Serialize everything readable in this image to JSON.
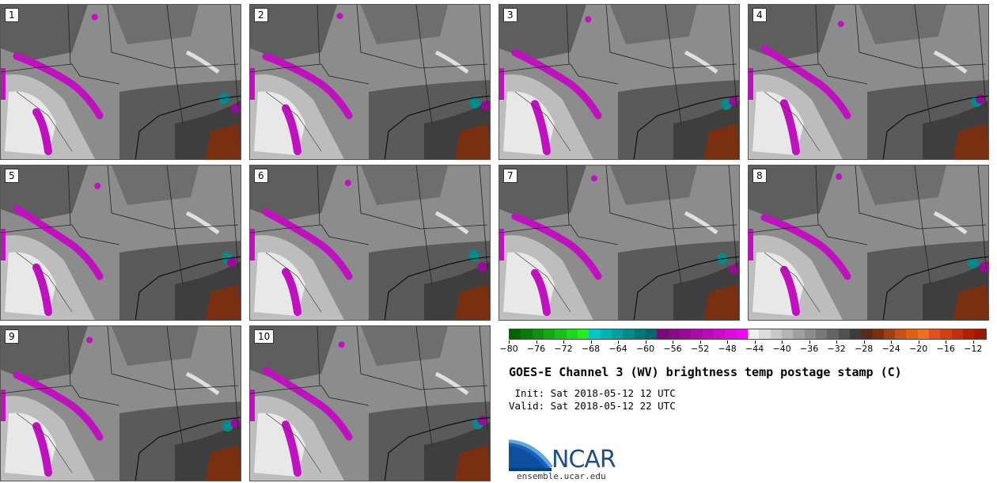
{
  "panels": [
    {
      "label": "1"
    },
    {
      "label": "2"
    },
    {
      "label": "3"
    },
    {
      "label": "4"
    },
    {
      "label": "5"
    },
    {
      "label": "6"
    },
    {
      "label": "7"
    },
    {
      "label": "8"
    },
    {
      "label": "9"
    },
    {
      "label": "10"
    }
  ],
  "colorbar": {
    "min": -80,
    "max": -10,
    "step": 2,
    "tick_values": [
      -80,
      -76,
      -72,
      -68,
      -64,
      -60,
      -56,
      -52,
      -48,
      -44,
      -40,
      -36,
      -32,
      -28,
      -24,
      -20,
      -16,
      -12
    ],
    "tick_labels": [
      "−80",
      "−76",
      "−72",
      "−68",
      "−64",
      "−60",
      "−56",
      "−52",
      "−48",
      "−44",
      "−40",
      "−36",
      "−32",
      "−28",
      "−24",
      "−20",
      "−16",
      "−12"
    ],
    "colors": [
      "#006400",
      "#0a7a0a",
      "#109010",
      "#14a814",
      "#18c018",
      "#1ed81e",
      "#22ee22",
      "#00c8c8",
      "#00b4b4",
      "#00a0a0",
      "#008c8c",
      "#007878",
      "#006868",
      "#7a0a7a",
      "#8a0a8a",
      "#9a0a9a",
      "#aa0aaa",
      "#bb0abb",
      "#cc0acc",
      "#dd0add",
      "#ee0aee",
      "#f0f0f0",
      "#dcdcdc",
      "#c8c8c8",
      "#b4b4b4",
      "#a0a0a0",
      "#8c8c8c",
      "#787878",
      "#646464",
      "#505050",
      "#3c3c3c",
      "#5a2a1a",
      "#7a3010",
      "#a04010",
      "#c85010",
      "#e06010",
      "#f07020",
      "#e05020",
      "#d04010",
      "#c03010",
      "#b02000",
      "#a01800"
    ]
  },
  "title": "GOES-E Channel 3 (WV) brightness temp postage stamp (C)",
  "init": " Init: Sat 2018-05-12 12 UTC",
  "valid": "Valid: Sat 2018-05-12 22 UTC",
  "logo_text": "NCAR",
  "url": "ensemble.ucar.edu"
}
